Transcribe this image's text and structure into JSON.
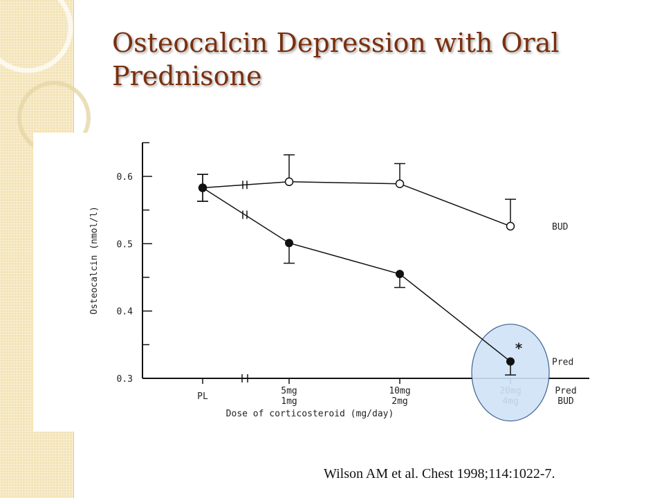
{
  "slide": {
    "title_line1": "Osteocalcin Depression with Oral",
    "title_line2": "Prednisone",
    "citation": "Wilson AM et al. Chest 1998;114:1022-7."
  },
  "colors": {
    "title": "#7a2f0e",
    "band": "#f3e3b6",
    "highlight_fill": "#cfe3f7",
    "highlight_stroke": "#2a4f80"
  },
  "chart_data": {
    "type": "line",
    "ylabel": "Osteocalcin (nmol/l)",
    "xlabel": "Dose of corticosteroid (mg/day)",
    "ylim": [
      0.3,
      0.65
    ],
    "yticks": [
      0.3,
      0.4,
      0.5,
      0.6
    ],
    "ytick_labels": [
      "0.3",
      "0.4",
      "0.5",
      "0.6"
    ],
    "x_positions": [
      0,
      1,
      2,
      3
    ],
    "x_tick_labels": [
      {
        "line1": "PL",
        "line2": ""
      },
      {
        "line1": "5mg",
        "line2": "1mg"
      },
      {
        "line1": "10mg",
        "line2": "2mg"
      },
      {
        "line1": "20mg",
        "line2": "4mg"
      }
    ],
    "x_legend_labels": {
      "line1": "Pred",
      "line2": "BUD"
    },
    "series": [
      {
        "name": "BUD",
        "marker": "open-circle",
        "values": [
          0.583,
          0.592,
          0.589,
          0.526
        ],
        "error_up": [
          0.02,
          0.04,
          0.03,
          0.04
        ],
        "error_down": [
          0.02,
          0,
          0,
          0
        ]
      },
      {
        "name": "Pred",
        "marker": "filled-circle",
        "values": [
          0.583,
          0.501,
          0.455,
          0.325
        ],
        "error_up": [
          0.02,
          0,
          0,
          0
        ],
        "error_down": [
          0.02,
          0.03,
          0.02,
          0.02
        ]
      }
    ],
    "annotations": [
      {
        "text": "*",
        "series": "Pred",
        "index": 3
      }
    ],
    "grid": false,
    "legend": "inline-right"
  }
}
